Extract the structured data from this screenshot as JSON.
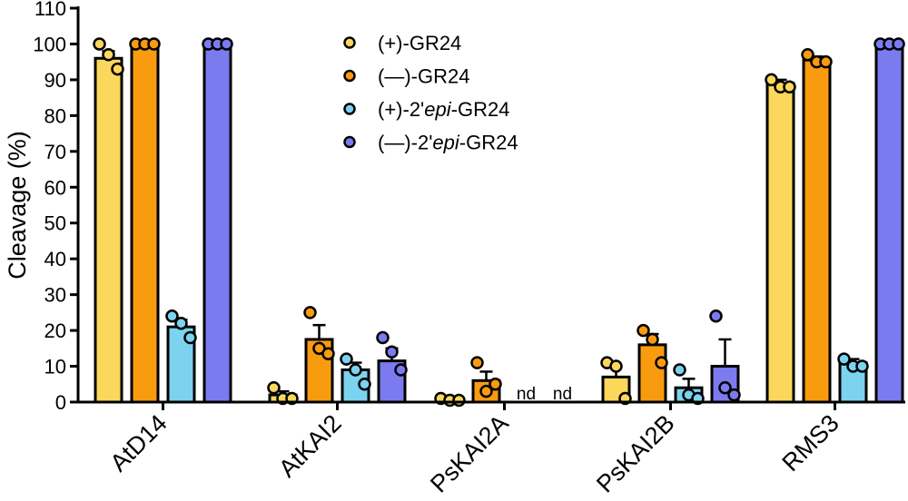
{
  "chart_data": {
    "type": "bar",
    "ylabel": "Cleavage (%)",
    "xlabel": "",
    "ylim": [
      0,
      110
    ],
    "yticks": [
      0,
      10,
      20,
      30,
      40,
      50,
      60,
      70,
      80,
      90,
      100,
      110
    ],
    "categories": [
      "AtD14",
      "AtKAI2",
      "PsKAI2A",
      "PsKAI2B",
      "RMS3"
    ],
    "series": [
      {
        "name": "(+)-GR24",
        "name_parts": [
          {
            "t": "(+)-GR24",
            "i": false
          }
        ],
        "color": "#FBD75B",
        "values": [
          96,
          2,
          0.7,
          7,
          89
        ],
        "errors": [
          2,
          1,
          0.3,
          3,
          1
        ],
        "points": [
          [
            100,
            97,
            93
          ],
          [
            4,
            1,
            1
          ],
          [
            1,
            0.5,
            0.5
          ],
          [
            11,
            10,
            1
          ],
          [
            90,
            88,
            88
          ]
        ],
        "nd": [
          false,
          false,
          false,
          false,
          false
        ]
      },
      {
        "name": "(—)-GR24",
        "name_parts": [
          {
            "t": "(—)-GR24",
            "i": false
          }
        ],
        "color": "#F99B0F",
        "values": [
          100,
          17.5,
          6,
          16,
          95.5
        ],
        "errors": [
          0,
          4,
          2.5,
          3,
          1
        ],
        "points": [
          [
            100,
            100,
            100
          ],
          [
            25,
            15,
            13.5
          ],
          [
            11,
            3,
            5
          ],
          [
            20,
            17.5,
            11
          ],
          [
            97,
            95,
            95
          ]
        ],
        "nd": [
          false,
          false,
          false,
          false,
          false
        ]
      },
      {
        "name": "(+)-2'epi-GR24",
        "name_parts": [
          {
            "t": "(+)-2'",
            "i": false
          },
          {
            "t": "epi",
            "i": true
          },
          {
            "t": "-GR24",
            "i": false
          }
        ],
        "color": "#7BD3F0",
        "values": [
          21,
          9,
          0,
          4,
          11
        ],
        "errors": [
          2,
          2,
          0,
          2.5,
          1
        ],
        "points": [
          [
            24,
            22,
            18
          ],
          [
            12,
            9,
            5
          ],
          [
            0,
            0,
            0
          ],
          [
            9,
            2,
            1
          ],
          [
            12,
            10,
            10
          ]
        ],
        "nd": [
          false,
          false,
          true,
          false,
          false
        ]
      },
      {
        "name": "(—)-2'epi-GR24",
        "name_parts": [
          {
            "t": "(—)-2'",
            "i": false
          },
          {
            "t": "epi",
            "i": true
          },
          {
            "t": "-GR24",
            "i": false
          }
        ],
        "color": "#7B7BEF",
        "values": [
          100,
          11.5,
          0,
          10,
          100
        ],
        "errors": [
          0,
          3.5,
          0,
          7.5,
          0
        ],
        "points": [
          [
            100,
            100,
            100
          ],
          [
            18,
            14,
            9
          ],
          [
            0,
            0,
            0
          ],
          [
            24,
            4,
            2
          ],
          [
            100,
            100,
            100
          ]
        ],
        "nd": [
          false,
          false,
          true,
          false,
          false
        ]
      }
    ],
    "nd_label": "nd",
    "legend_position": "top-center",
    "grid": false
  }
}
